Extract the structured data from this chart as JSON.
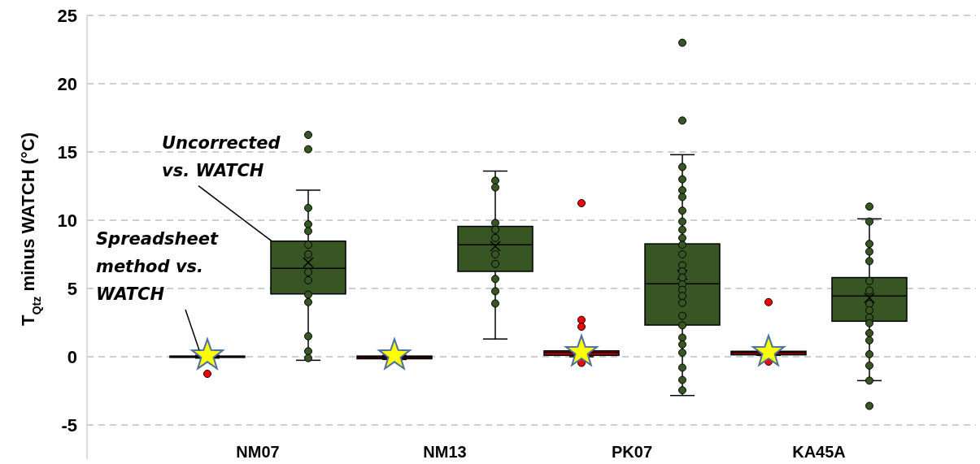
{
  "chart_data": {
    "type": "box",
    "ylabel": "T$_{Qtz}$ minus WATCH (°C)",
    "categories": [
      "NM07",
      "NM13",
      "PK07",
      "KA45A"
    ],
    "ylim": [
      -7.5,
      25
    ],
    "yticks": [
      -5,
      0,
      5,
      10,
      15,
      20,
      25
    ],
    "grid": "y",
    "series": [
      {
        "name": "Spreadsheet method vs. WATCH",
        "color": "#c00000",
        "boxes": [
          {
            "low": -0.1,
            "q1": -0.05,
            "median": 0,
            "q3": 0.05,
            "high": 0.1
          },
          {
            "low": -0.2,
            "q1": -0.15,
            "median": -0.05,
            "q3": 0.05,
            "high": 0.1
          },
          {
            "low": 0,
            "q1": 0.1,
            "median": 0.3,
            "q3": 0.43,
            "high": 0.5
          },
          {
            "low": 0.1,
            "q1": 0.14,
            "median": 0.3,
            "q3": 0.4,
            "high": 0.45
          }
        ]
      },
      {
        "name": "Uncorrected vs. WATCH",
        "color": "#375623",
        "boxes": [
          {
            "low": -0.26,
            "q1": 4.6,
            "median": 6.47,
            "q3": 8.47,
            "high": 12.2,
            "mean": 6.9
          },
          {
            "low": 1.3,
            "q1": 6.25,
            "median": 8.2,
            "q3": 9.55,
            "high": 13.6,
            "mean": 8.1
          },
          {
            "low": -2.84,
            "q1": 2.32,
            "median": 5.34,
            "q3": 8.27,
            "high": 14.8,
            "mean": 6.0
          },
          {
            "low": -1.75,
            "q1": 2.6,
            "median": 4.45,
            "q3": 5.8,
            "high": 10.1,
            "mean": 4.3
          }
        ]
      },
      {
        "type": "scatter",
        "color": "#ff0000",
        "marker": "circle",
        "x": [
          "NM07",
          "PK07",
          "PK07",
          "PK07",
          "PK07",
          "KA45A",
          "KA45A"
        ],
        "values": [
          -1.25,
          11.25,
          2.7,
          2.2,
          -0.45,
          4.0,
          -0.36
        ]
      },
      {
        "type": "scatter",
        "color": "#375623",
        "marker": "circle",
        "x": [
          "NM07",
          "NM07",
          "NM07",
          "NM07",
          "NM07",
          "NM07",
          "NM07",
          "NM07",
          "NM07",
          "NM07",
          "NM07",
          "NM07",
          "NM07",
          "NM07",
          "NM13",
          "NM13",
          "NM13",
          "NM13",
          "NM13",
          "NM13",
          "NM13",
          "NM13",
          "NM13",
          "NM13",
          "PK07",
          "PK07",
          "PK07",
          "PK07",
          "PK07",
          "PK07",
          "PK07",
          "PK07",
          "PK07",
          "PK07",
          "PK07",
          "PK07",
          "PK07",
          "PK07",
          "PK07",
          "PK07",
          "PK07",
          "PK07",
          "PK07",
          "PK07",
          "PK07",
          "PK07",
          "PK07",
          "PK07",
          "PK07",
          "PK07",
          "PK07",
          "KA45A",
          "KA45A",
          "KA45A",
          "KA45A",
          "KA45A",
          "KA45A",
          "KA45A",
          "KA45A",
          "KA45A",
          "KA45A",
          "KA45A",
          "KA45A",
          "KA45A",
          "KA45A",
          "KA45A",
          "KA45A",
          "KA45A"
        ],
        "values": [
          16.25,
          15.2,
          10.9,
          9.7,
          9.2,
          8.2,
          7.5,
          6.2,
          5.6,
          4.55,
          4.0,
          1.5,
          0.4,
          -0.1,
          12.9,
          12.4,
          9.8,
          9.3,
          8.7,
          7.5,
          6.8,
          5.7,
          4.8,
          3.9,
          23.0,
          17.3,
          13.9,
          13.0,
          12.2,
          11.7,
          10.7,
          9.9,
          9.3,
          8.7,
          8.2,
          7.5,
          6.7,
          6.25,
          5.8,
          5.3,
          4.9,
          4.45,
          3.95,
          3.0,
          2.3,
          1.4,
          0.9,
          0.3,
          -0.8,
          -1.7,
          -2.45,
          11.0,
          9.9,
          8.27,
          7.7,
          7.0,
          5.55,
          4.85,
          3.87,
          3.4,
          2.86,
          2.46,
          1.73,
          1.2,
          0.18,
          -0.65,
          -1.75,
          -3.6
        ]
      },
      {
        "type": "scatter",
        "color": "#ffff00",
        "marker": "star",
        "x": [
          "NM07",
          "NM13",
          "PK07",
          "KA45A"
        ],
        "values": [
          0.1,
          0.1,
          0.35,
          0.35
        ]
      }
    ]
  }
}
